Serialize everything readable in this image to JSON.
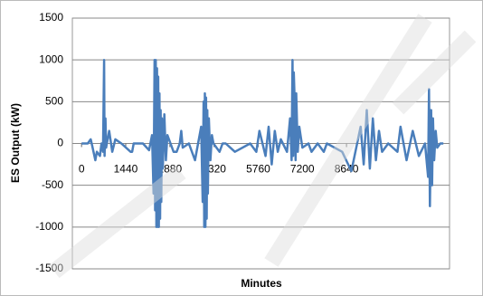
{
  "chart_data": {
    "type": "line",
    "y_label": "ES Output (kW)",
    "x_label": "Minutes",
    "x": [
      0,
      200,
      300,
      350,
      450,
      500,
      600,
      650,
      700,
      735,
      750,
      780,
      800,
      900,
      1000,
      1100,
      1300,
      1600,
      1650,
      1700,
      2000,
      2200,
      2300,
      2350,
      2380,
      2400,
      2420,
      2440,
      2460,
      2480,
      2500,
      2520,
      2540,
      2560,
      2580,
      2600,
      2620,
      2650,
      2700,
      2750,
      2800,
      2900,
      3000,
      3100,
      3200,
      3250,
      3300,
      3500,
      3700,
      3900,
      3950,
      3980,
      4000,
      4020,
      4040,
      4060,
      4080,
      4100,
      4120,
      4150,
      4200,
      4250,
      4300,
      4500,
      4600,
      4700,
      5000,
      5500,
      5700,
      5800,
      6000,
      6100,
      6200,
      6300,
      6400,
      6500,
      6700,
      6800,
      6850,
      6880,
      6900,
      6920,
      6950,
      6980,
      7000,
      7050,
      7100,
      7200,
      7400,
      7500,
      7700,
      7900,
      8000,
      8500,
      8800,
      9100,
      9200,
      9300,
      9400,
      9500,
      9600,
      9700,
      9800,
      10000,
      10300,
      10400,
      10600,
      10800,
      11000,
      11200,
      11300,
      11330,
      11360,
      11400,
      11430,
      11460,
      11500,
      11550,
      11600,
      11700,
      11800
    ],
    "series": [
      {
        "name": "ES Output",
        "color": "#4a7ebb",
        "values": [
          0,
          0,
          50,
          -30,
          -200,
          -100,
          -150,
          0,
          -100,
          1000,
          -150,
          300,
          -50,
          150,
          -100,
          50,
          0,
          -100,
          -100,
          0,
          0,
          -80,
          100,
          -600,
          1000,
          -800,
          1000,
          -1000,
          900,
          -1000,
          800,
          -1000,
          600,
          -900,
          400,
          -700,
          300,
          -300,
          350,
          -200,
          100,
          0,
          -100,
          -100,
          0,
          150,
          -50,
          0,
          -200,
          200,
          -700,
          500,
          -1000,
          600,
          -1000,
          550,
          -900,
          400,
          -600,
          300,
          -200,
          100,
          0,
          -100,
          0,
          0,
          -100,
          0,
          -100,
          150,
          -150,
          200,
          -250,
          150,
          -100,
          50,
          -100,
          300,
          -200,
          1000,
          -150,
          850,
          500,
          -200,
          600,
          -100,
          200,
          -50,
          0,
          -100,
          0,
          -100,
          0,
          -100,
          -330,
          200,
          -250,
          400,
          -300,
          300,
          -200,
          150,
          -100,
          0,
          -100,
          200,
          -200,
          150,
          -150,
          0,
          -400,
          650,
          -750,
          400,
          -500,
          300,
          -200,
          150,
          -50,
          0,
          0
        ]
      }
    ],
    "xlim": [
      -300,
      12000
    ],
    "xticks": [
      0,
      1440,
      2880,
      4320,
      5760,
      7200,
      8640
    ],
    "ylim": [
      -1500,
      1500
    ],
    "yticks": [
      -1500,
      -1000,
      -500,
      0,
      500,
      1000,
      1500
    ],
    "grid": true
  }
}
